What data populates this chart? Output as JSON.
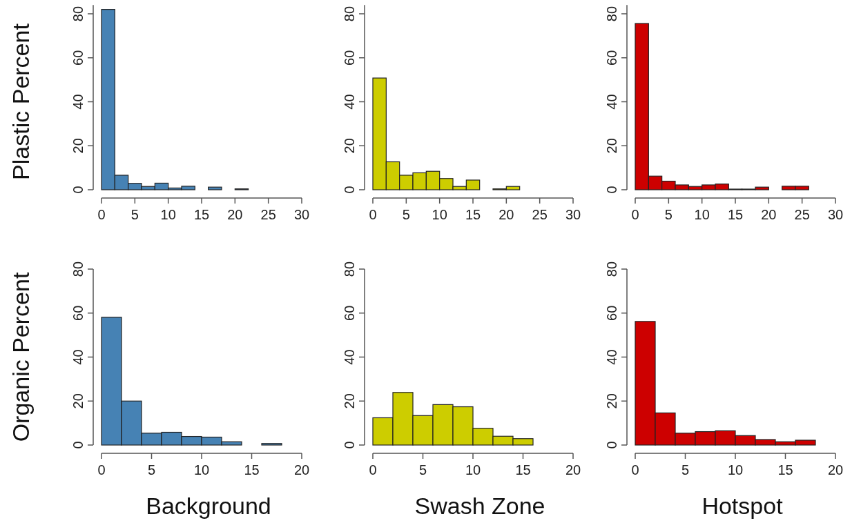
{
  "chart_data": [
    {
      "type": "histogram",
      "ylabel": "Plastic Percent",
      "bins": [
        0,
        2,
        4,
        6,
        8,
        10,
        12,
        14,
        16,
        18,
        20,
        22
      ],
      "values": [
        82,
        6.6,
        2.9,
        1.5,
        3,
        0.8,
        1.6,
        0,
        1.2,
        0,
        0.4
      ],
      "color": "#4682b4",
      "xlim": [
        0,
        30
      ],
      "xticks": [
        0,
        5,
        10,
        15,
        20,
        25,
        30
      ],
      "ylim": [
        0,
        84
      ],
      "yticks": [
        0,
        20,
        40,
        60,
        80
      ],
      "grid": false
    },
    {
      "type": "histogram",
      "bins": [
        0,
        2,
        4,
        6,
        8,
        10,
        12,
        14,
        16,
        18,
        20,
        22
      ],
      "values": [
        50.8,
        12.7,
        6.6,
        7.7,
        8.4,
        5.1,
        1.5,
        4.4,
        0,
        0.4,
        1.5
      ],
      "color": "#cdcd00",
      "xlim": [
        0,
        30
      ],
      "xticks": [
        0,
        5,
        10,
        15,
        20,
        25,
        30
      ],
      "ylim": [
        0,
        84
      ],
      "yticks": [
        0,
        20,
        40,
        60,
        80
      ],
      "grid": false
    },
    {
      "type": "histogram",
      "bins": [
        0,
        2,
        4,
        6,
        8,
        10,
        12,
        14,
        16,
        18,
        20,
        22,
        24,
        26
      ],
      "values": [
        75.6,
        6.2,
        3.9,
        2.2,
        1.5,
        2.2,
        2.6,
        0.3,
        0.3,
        1.2,
        0,
        1.6,
        1.6
      ],
      "color": "#cd0000",
      "xlim": [
        0,
        30
      ],
      "xticks": [
        0,
        5,
        10,
        15,
        20,
        25,
        30
      ],
      "ylim": [
        0,
        84
      ],
      "yticks": [
        0,
        20,
        40,
        60,
        80
      ],
      "grid": false
    },
    {
      "type": "histogram",
      "ylabel": "Organic Percent",
      "xlabel": "Background",
      "bins": [
        0,
        2,
        4,
        6,
        8,
        10,
        12,
        14,
        16,
        18
      ],
      "values": [
        58.1,
        20,
        5.4,
        5.8,
        3.9,
        3.6,
        1.5,
        0,
        0.7
      ],
      "color": "#4682b4",
      "xlim": [
        0,
        20
      ],
      "xticks": [
        0,
        5,
        10,
        15,
        20
      ],
      "ylim": [
        0,
        80
      ],
      "yticks": [
        0,
        20,
        40,
        60,
        80
      ],
      "grid": false
    },
    {
      "type": "histogram",
      "xlabel": "Swash Zone",
      "bins": [
        0,
        2,
        4,
        6,
        8,
        10,
        12,
        14,
        16
      ],
      "values": [
        12.4,
        23.9,
        13.4,
        18.4,
        17.4,
        7.6,
        4,
        2.9
      ],
      "color": "#cdcd00",
      "xlim": [
        0,
        20
      ],
      "xticks": [
        0,
        5,
        10,
        15,
        20
      ],
      "ylim": [
        0,
        80
      ],
      "yticks": [
        0,
        20,
        40,
        60,
        80
      ],
      "grid": false
    },
    {
      "type": "histogram",
      "xlabel": "Hotspot",
      "bins": [
        0,
        2,
        4,
        6,
        8,
        10,
        12,
        14,
        16,
        18
      ],
      "values": [
        56.2,
        14.6,
        5.4,
        6.1,
        6.5,
        4.3,
        2.5,
        1.5,
        2.2
      ],
      "color": "#cd0000",
      "xlim": [
        0,
        20
      ],
      "xticks": [
        0,
        5,
        10,
        15,
        20
      ],
      "ylim": [
        0,
        80
      ],
      "yticks": [
        0,
        20,
        40,
        60,
        80
      ],
      "grid": false
    }
  ]
}
